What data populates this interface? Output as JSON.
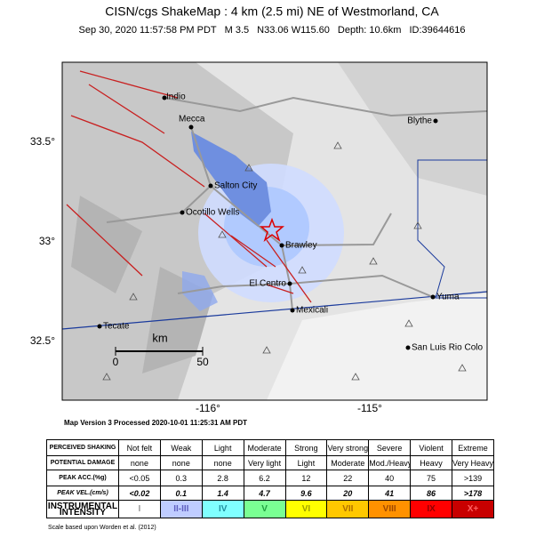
{
  "header": {
    "title": "CISN/cgs ShakeMap : 4 km (2.5 mi) NE of Westmorland, CA",
    "subtitle": [
      "Sep 30, 2020 11:57:58 PM PDT",
      "M 3.5",
      "N33.06 W115.60",
      "Depth: 10.6km",
      "ID:39644616"
    ]
  },
  "map": {
    "cities": [
      "Indio",
      "Mecca",
      "Blythe",
      "Salton City",
      "Ocotillo Wells",
      "Brawley",
      "El Centro",
      "Mexicali",
      "Yuma",
      "Tecate",
      "San Luis Rio Colo"
    ],
    "lat_labels": [
      "33.5°",
      "33°",
      "32.5°"
    ],
    "lon_labels": [
      "-116°",
      "-115°"
    ],
    "scale": {
      "unit": "km",
      "ticks": [
        "0",
        "50"
      ]
    }
  },
  "version": "Map Version 3 Processed 2020-10-01 11:25:31 AM PDT",
  "table": {
    "rows": [
      [
        "PERCEIVED SHAKING",
        "Not felt",
        "Weak",
        "Light",
        "Moderate",
        "Strong",
        "Very strong",
        "Severe",
        "Violent",
        "Extreme"
      ],
      [
        "POTENTIAL DAMAGE",
        "none",
        "none",
        "none",
        "Very light",
        "Light",
        "Moderate",
        "Mod./Heavy",
        "Heavy",
        "Very Heavy"
      ],
      [
        "PEAK ACC.(%g)",
        "<0.05",
        "0.3",
        "2.8",
        "6.2",
        "12",
        "22",
        "40",
        "75",
        ">139"
      ],
      [
        "PEAK VEL.(cm/s)",
        "<0.02",
        "0.1",
        "1.4",
        "4.7",
        "9.6",
        "20",
        "41",
        "86",
        ">178"
      ],
      [
        "INSTRUMENTAL INTENSITY",
        "I",
        "II-III",
        "IV",
        "V",
        "VI",
        "VII",
        "VIII",
        "IX",
        "X+"
      ]
    ]
  },
  "footer": "Scale based upon Worden et al. (2012)"
}
